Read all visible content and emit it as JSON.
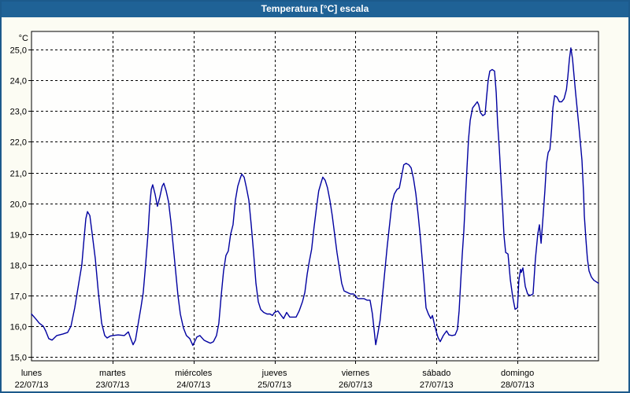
{
  "window": {
    "title": "Temperatura [°C] escala"
  },
  "colors": {
    "titlebar_bg": "#1f6296",
    "titlebar_text": "#ffffff",
    "window_border": "#1c5a8c",
    "window_bg": "#fcfcf3",
    "plot_bg": "#fefefd",
    "grid": "#000000",
    "text": "#000000",
    "line": "#0000a0"
  },
  "chart_data": {
    "type": "line",
    "title": "Temperatura [°C] escala",
    "y_unit": "°C",
    "ylim": [
      15.0,
      25.0
    ],
    "y_tick_step": 1.0,
    "y_tick_labels": [
      "25,0",
      "24,0",
      "23,0",
      "22,0",
      "21,0",
      "20,0",
      "19,0",
      "18,0",
      "17,0",
      "16,0",
      "15,0"
    ],
    "x_range_hours": [
      0,
      168
    ],
    "x_days": [
      {
        "day": "lunes",
        "date": "22/07/13"
      },
      {
        "day": "martes",
        "date": "23/07/13"
      },
      {
        "day": "miércoles",
        "date": "24/07/13"
      },
      {
        "day": "jueves",
        "date": "25/07/13"
      },
      {
        "day": "viernes",
        "date": "26/07/13"
      },
      {
        "day": "sábado",
        "date": "27/07/13"
      },
      {
        "day": "domingo",
        "date": "28/07/13"
      }
    ],
    "grid": "dashed",
    "legend": "none",
    "series": [
      {
        "color": "#0000a0",
        "points": [
          [
            0,
            16.4
          ],
          [
            1.2,
            16.25
          ],
          [
            2.3,
            16.1
          ],
          [
            3.5,
            16.0
          ],
          [
            4.2,
            15.85
          ],
          [
            5.1,
            15.6
          ],
          [
            6.1,
            15.55
          ],
          [
            7.5,
            15.7
          ],
          [
            9.3,
            15.75
          ],
          [
            10.7,
            15.8
          ],
          [
            11.7,
            16.0
          ],
          [
            12.8,
            16.6
          ],
          [
            14,
            17.4
          ],
          [
            14.9,
            18.0
          ],
          [
            15.6,
            18.9
          ],
          [
            16.1,
            19.5
          ],
          [
            16.6,
            19.73
          ],
          [
            17.3,
            19.6
          ],
          [
            18,
            19.0
          ],
          [
            18.9,
            18.2
          ],
          [
            19.8,
            17.1
          ],
          [
            20.8,
            16.1
          ],
          [
            21.7,
            15.7
          ],
          [
            22.4,
            15.62
          ],
          [
            23.3,
            15.68
          ],
          [
            24,
            15.7
          ],
          [
            25.7,
            15.72
          ],
          [
            27.5,
            15.7
          ],
          [
            28.7,
            15.82
          ],
          [
            29.4,
            15.6
          ],
          [
            30.1,
            15.4
          ],
          [
            30.8,
            15.55
          ],
          [
            31.7,
            16.15
          ],
          [
            32.4,
            16.6
          ],
          [
            33.1,
            17.1
          ],
          [
            33.8,
            18.0
          ],
          [
            34.5,
            19.0
          ],
          [
            35,
            19.9
          ],
          [
            35.5,
            20.45
          ],
          [
            35.9,
            20.6
          ],
          [
            36.6,
            20.3
          ],
          [
            37.3,
            19.9
          ],
          [
            38,
            20.2
          ],
          [
            38.7,
            20.55
          ],
          [
            39.2,
            20.65
          ],
          [
            39.9,
            20.4
          ],
          [
            40.6,
            20.05
          ],
          [
            41.3,
            19.4
          ],
          [
            42,
            18.6
          ],
          [
            42.7,
            17.8
          ],
          [
            43.4,
            17.0
          ],
          [
            44.1,
            16.4
          ],
          [
            45,
            15.95
          ],
          [
            45.9,
            15.7
          ],
          [
            46.9,
            15.6
          ],
          [
            47.8,
            15.38
          ],
          [
            48,
            15.42
          ],
          [
            49,
            15.65
          ],
          [
            49.9,
            15.7
          ],
          [
            51.1,
            15.55
          ],
          [
            52,
            15.5
          ],
          [
            53,
            15.45
          ],
          [
            53.9,
            15.5
          ],
          [
            54.8,
            15.7
          ],
          [
            55.5,
            16.1
          ],
          [
            56.2,
            17.0
          ],
          [
            56.9,
            17.8
          ],
          [
            57.6,
            18.3
          ],
          [
            58.3,
            18.45
          ],
          [
            59,
            19.0
          ],
          [
            59.7,
            19.3
          ],
          [
            60.4,
            20.1
          ],
          [
            61.1,
            20.55
          ],
          [
            61.8,
            20.8
          ],
          [
            62.3,
            20.95
          ],
          [
            63,
            20.85
          ],
          [
            63.7,
            20.5
          ],
          [
            64.4,
            20.1
          ],
          [
            65.1,
            19.3
          ],
          [
            65.8,
            18.4
          ],
          [
            66.5,
            17.4
          ],
          [
            67.2,
            16.8
          ],
          [
            67.9,
            16.55
          ],
          [
            68.8,
            16.45
          ],
          [
            69.8,
            16.4
          ],
          [
            70.7,
            16.4
          ],
          [
            71.4,
            16.35
          ],
          [
            72,
            16.45
          ],
          [
            73,
            16.5
          ],
          [
            74,
            16.35
          ],
          [
            74.7,
            16.25
          ],
          [
            75.6,
            16.45
          ],
          [
            76.5,
            16.3
          ],
          [
            77.5,
            16.3
          ],
          [
            78.4,
            16.3
          ],
          [
            79.3,
            16.5
          ],
          [
            80.3,
            16.8
          ],
          [
            81,
            17.1
          ],
          [
            81.7,
            17.7
          ],
          [
            82.3,
            18.1
          ],
          [
            83,
            18.5
          ],
          [
            83.7,
            19.2
          ],
          [
            84.5,
            19.9
          ],
          [
            85.1,
            20.4
          ],
          [
            85.9,
            20.7
          ],
          [
            86.3,
            20.85
          ],
          [
            87,
            20.75
          ],
          [
            87.7,
            20.5
          ],
          [
            88.4,
            20.1
          ],
          [
            89.1,
            19.6
          ],
          [
            89.8,
            19.0
          ],
          [
            90.5,
            18.4
          ],
          [
            91.2,
            17.9
          ],
          [
            91.9,
            17.4
          ],
          [
            92.6,
            17.15
          ],
          [
            93.6,
            17.1
          ],
          [
            94.5,
            17.05
          ],
          [
            95.4,
            17.05
          ],
          [
            96,
            17.0
          ],
          [
            96.6,
            16.9
          ],
          [
            97.5,
            16.9
          ],
          [
            98.5,
            16.9
          ],
          [
            99.4,
            16.85
          ],
          [
            100.3,
            16.85
          ],
          [
            101,
            16.4
          ],
          [
            101.5,
            15.9
          ],
          [
            102,
            15.4
          ],
          [
            102.6,
            15.75
          ],
          [
            103.3,
            16.2
          ],
          [
            104,
            17.0
          ],
          [
            104.7,
            17.8
          ],
          [
            105.4,
            18.6
          ],
          [
            106.1,
            19.3
          ],
          [
            106.8,
            20.0
          ],
          [
            107.5,
            20.3
          ],
          [
            108.3,
            20.45
          ],
          [
            109,
            20.5
          ],
          [
            109.7,
            20.9
          ],
          [
            110.3,
            21.25
          ],
          [
            111,
            21.3
          ],
          [
            111.8,
            21.25
          ],
          [
            112.5,
            21.15
          ],
          [
            113.2,
            20.8
          ],
          [
            113.9,
            20.3
          ],
          [
            114.6,
            19.6
          ],
          [
            115.3,
            18.8
          ],
          [
            115.9,
            18.0
          ],
          [
            116.4,
            17.3
          ],
          [
            116.9,
            16.6
          ],
          [
            117.6,
            16.4
          ],
          [
            118.3,
            16.25
          ],
          [
            118.8,
            16.35
          ],
          [
            119.3,
            16.1
          ],
          [
            120,
            15.8
          ],
          [
            120.4,
            15.65
          ],
          [
            121.1,
            15.5
          ],
          [
            122,
            15.7
          ],
          [
            123,
            15.85
          ],
          [
            123.7,
            15.72
          ],
          [
            124.6,
            15.7
          ],
          [
            125.5,
            15.72
          ],
          [
            126.2,
            15.9
          ],
          [
            126.7,
            16.5
          ],
          [
            127.1,
            17.3
          ],
          [
            127.6,
            18.3
          ],
          [
            128.1,
            19.1
          ],
          [
            128.6,
            20.2
          ],
          [
            129.1,
            21.3
          ],
          [
            129.5,
            22.1
          ],
          [
            130,
            22.7
          ],
          [
            130.7,
            23.1
          ],
          [
            131.4,
            23.2
          ],
          [
            132.1,
            23.3
          ],
          [
            132.5,
            23.2
          ],
          [
            133,
            22.95
          ],
          [
            133.7,
            22.85
          ],
          [
            134.4,
            22.9
          ],
          [
            134.8,
            23.4
          ],
          [
            135.3,
            24.0
          ],
          [
            135.8,
            24.3
          ],
          [
            136.5,
            24.35
          ],
          [
            137.2,
            24.3
          ],
          [
            137.7,
            23.6
          ],
          [
            138.1,
            22.6
          ],
          [
            138.6,
            21.8
          ],
          [
            139,
            21.0
          ],
          [
            139.5,
            20.0
          ],
          [
            140,
            18.95
          ],
          [
            140.5,
            18.4
          ],
          [
            141.2,
            18.35
          ],
          [
            141.9,
            17.5
          ],
          [
            142.6,
            16.95
          ],
          [
            143.3,
            16.55
          ],
          [
            144,
            16.6
          ],
          [
            144.4,
            17.5
          ],
          [
            144.9,
            17.85
          ],
          [
            145.1,
            17.75
          ],
          [
            145.6,
            17.9
          ],
          [
            146.3,
            17.3
          ],
          [
            147,
            17.05
          ],
          [
            147.7,
            17.0
          ],
          [
            148.6,
            17.05
          ],
          [
            149.3,
            18.2
          ],
          [
            150,
            19.0
          ],
          [
            150.5,
            19.3
          ],
          [
            151,
            18.7
          ],
          [
            151.6,
            19.6
          ],
          [
            152.1,
            20.4
          ],
          [
            152.6,
            21.3
          ],
          [
            153.1,
            21.65
          ],
          [
            153.6,
            21.75
          ],
          [
            154.1,
            22.4
          ],
          [
            154.5,
            23.1
          ],
          [
            155,
            23.5
          ],
          [
            155.7,
            23.45
          ],
          [
            156.4,
            23.3
          ],
          [
            157.1,
            23.3
          ],
          [
            157.8,
            23.4
          ],
          [
            158.5,
            23.7
          ],
          [
            158.9,
            24.1
          ],
          [
            159.4,
            24.7
          ],
          [
            159.8,
            25.05
          ],
          [
            160.3,
            24.7
          ],
          [
            160.8,
            24.1
          ],
          [
            161.2,
            23.6
          ],
          [
            161.7,
            23.05
          ],
          [
            162.2,
            22.5
          ],
          [
            162.6,
            22.0
          ],
          [
            163.1,
            21.4
          ],
          [
            163.6,
            20.3
          ],
          [
            163.8,
            19.6
          ],
          [
            164.3,
            18.8
          ],
          [
            164.7,
            18.2
          ],
          [
            165.2,
            17.8
          ],
          [
            165.9,
            17.6
          ],
          [
            166.6,
            17.5
          ],
          [
            167.3,
            17.45
          ],
          [
            168,
            17.4
          ]
        ]
      }
    ]
  }
}
